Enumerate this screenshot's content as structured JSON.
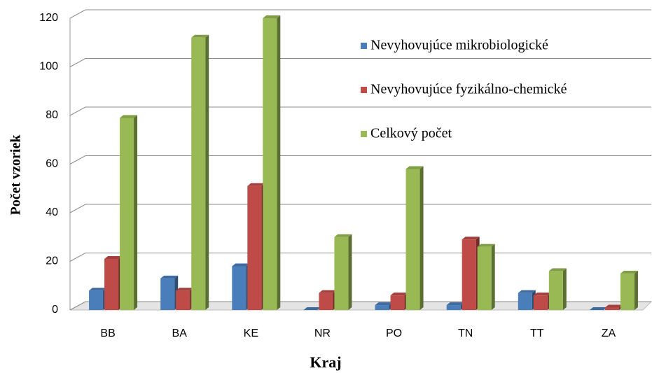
{
  "chart_data": {
    "type": "bar",
    "x_label": "Kraj",
    "y_label": "Počet vzoriek",
    "categories": [
      "BB",
      "BA",
      "KE",
      "NR",
      "PO",
      "TN",
      "TT",
      "ZA"
    ],
    "series": [
      {
        "name": "Nevyhovujúce mikrobiologické",
        "color": "#4a7ebb",
        "values": [
          8,
          13,
          18,
          0,
          2,
          2,
          7,
          0
        ]
      },
      {
        "name": "Nevyhovujúce fyzikálno-chemické",
        "color": "#be4b48",
        "values": [
          21,
          8,
          51,
          7,
          6,
          29,
          6,
          1
        ]
      },
      {
        "name": "Celkový počet",
        "color": "#98b954",
        "values": [
          79,
          112,
          120,
          30,
          58,
          26,
          16,
          15
        ]
      }
    ],
    "ylim": [
      0,
      120
    ],
    "yticks": [
      0,
      20,
      40,
      60,
      80,
      100,
      120
    ],
    "grid": true,
    "legend": "top-right"
  }
}
